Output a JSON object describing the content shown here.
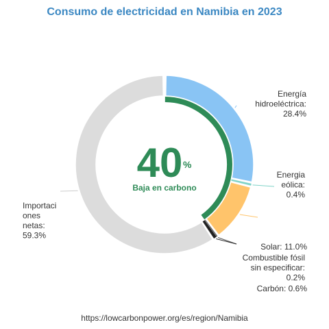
{
  "chart_data": {
    "type": "pie",
    "title": "Consumo de electricidad en Namibia en 2023",
    "center_value": "40",
    "center_unit": "%",
    "center_label": "Baja en carbono",
    "low_carbon_share": 40,
    "slices": [
      {
        "name": "Energía hidroeléctrica",
        "value": 28.4,
        "label": [
          "Energía",
          "hidroeléctrica:",
          "28.4%"
        ],
        "color": "#89c4f4"
      },
      {
        "name": "Energia eólica",
        "value": 0.4,
        "label": [
          "Energia",
          "eólica:",
          "0.4%"
        ],
        "color": "#7fd3c7"
      },
      {
        "name": "Solar",
        "value": 11.0,
        "label": [
          "Solar: 11.0%"
        ],
        "color": "#ffc46b"
      },
      {
        "name": "Combustible fósil sin especificar",
        "value": 0.2,
        "label": [
          "Combustible fósil",
          "sin especificar:",
          "0.2%"
        ],
        "color": "#555555"
      },
      {
        "name": "Carbón",
        "value": 0.6,
        "label": [
          "Carbón: 0.6%"
        ],
        "color": "#222222"
      },
      {
        "name": "Importaciones netas",
        "value": 59.3,
        "label": [
          "Importaci",
          "ones",
          "netas:",
          "59.3%"
        ],
        "color": "#dcdcdc"
      }
    ],
    "inner_ring_color": "#2e8b57"
  },
  "footer": "https://lowcarbonpower.org/es/region/Namibia"
}
